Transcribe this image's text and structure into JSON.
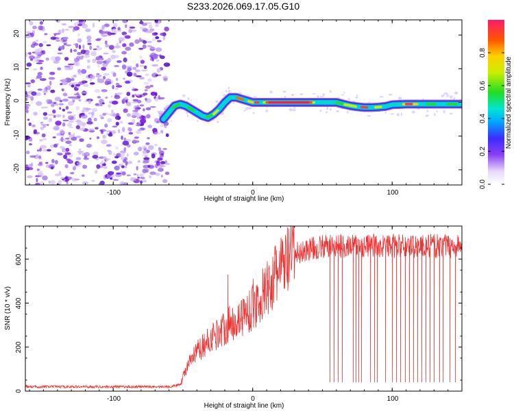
{
  "title": "S233.2026.069.17.05.G10",
  "colors": {
    "snr_line": "#ee3333",
    "noise_purple": "#7a1fe0",
    "noise_light": "#d7c2f6",
    "axis": "#000000"
  },
  "chart_data": [
    {
      "type": "heatmap",
      "name": "spectrogram",
      "title": "S233.2026.069.17.05.G10",
      "xlabel": "Height of straight line (km)",
      "ylabel": "Frequency (Hz)",
      "xlim": [
        -163,
        150
      ],
      "ylim": [
        -24.5,
        24.5
      ],
      "x_ticks": [
        -100,
        0,
        100
      ],
      "x_tick_labels": [
        "-100",
        "0",
        "100"
      ],
      "y_ticks": [
        -20,
        -10,
        0,
        10,
        20
      ],
      "y_tick_labels": [
        "-20",
        "-10",
        "0",
        "10",
        "20"
      ],
      "noise_region_x": [
        -163,
        -64
      ],
      "signal_start_x": -64,
      "ridge": {
        "x": [
          -64,
          -60,
          -56,
          -52,
          -48,
          -44,
          -40,
          -36,
          -32,
          -28,
          -24,
          -20,
          -16,
          -12,
          -8,
          -4,
          0,
          5,
          10,
          20,
          30,
          40,
          50,
          60,
          65,
          70,
          75,
          80,
          85,
          90,
          95,
          100,
          110,
          120,
          130,
          140,
          150
        ],
        "y": [
          -5,
          -3,
          -1,
          -0.5,
          -1,
          -2,
          -3,
          -4,
          -4.5,
          -3.5,
          -2,
          0,
          1.5,
          1.5,
          1,
          0.5,
          0,
          0,
          0,
          0,
          0,
          0,
          0,
          0,
          -0.5,
          -1,
          -1.3,
          -1.5,
          -1.5,
          -1.4,
          -1.2,
          -0.7,
          -0.5,
          -0.5,
          -0.5,
          -0.5,
          -0.5
        ]
      },
      "colorbar": {
        "label": "Normalized spectral amplitude",
        "range": [
          0,
          1
        ],
        "ticks": [
          0,
          0.2,
          0.4,
          0.6,
          0.8
        ],
        "tick_labels": [
          "0.0",
          "0.2",
          "0.4",
          "0.6",
          "0.8"
        ]
      }
    },
    {
      "type": "line",
      "name": "snr",
      "xlabel": "Height of straight line (km)",
      "ylabel": "SNR (10 * v/v)",
      "xlim": [
        -163,
        150
      ],
      "ylim": [
        0,
        750
      ],
      "x_ticks": [
        -100,
        0,
        100
      ],
      "x_tick_labels": [
        "-100",
        "0",
        "100"
      ],
      "y_ticks": [
        0,
        200,
        400,
        600
      ],
      "y_tick_labels": [
        "0",
        "200",
        "400",
        "600"
      ],
      "series": [
        {
          "name": "SNR",
          "trend_x": [
            -163,
            -60,
            -52,
            -48,
            -40,
            -30,
            -20,
            -10,
            0,
            10,
            20,
            30,
            40,
            50,
            60,
            70,
            80,
            90,
            100,
            110,
            120,
            130,
            140,
            150
          ],
          "trend_y": [
            20,
            20,
            30,
            100,
            180,
            240,
            290,
            330,
            380,
            460,
            560,
            620,
            645,
            655,
            660,
            660,
            660,
            660,
            660,
            660,
            660,
            660,
            660,
            660
          ],
          "dropouts_x": [
            55,
            58,
            61,
            64,
            72,
            74,
            76,
            78,
            84,
            87,
            89,
            95,
            100,
            103,
            106,
            109,
            112,
            115,
            118,
            121,
            124,
            127,
            130,
            134,
            136,
            141,
            145
          ],
          "dropout_floor": 40,
          "spikes_x": [
            -18,
            0,
            17
          ],
          "spikes_y": [
            530,
            510,
            640
          ]
        }
      ]
    }
  ]
}
